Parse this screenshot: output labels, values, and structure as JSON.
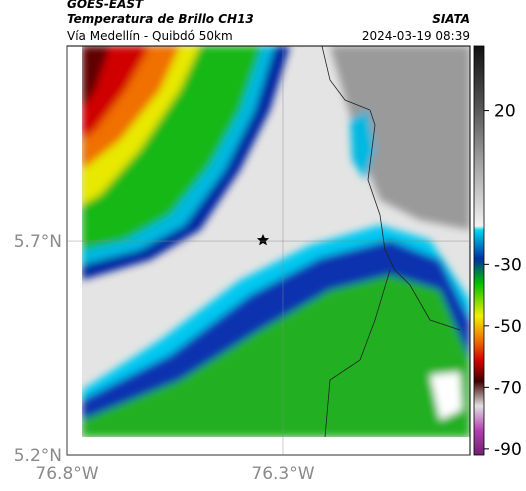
{
  "header": {
    "satellite": "GOES-EAST",
    "product": "Temperatura de Brillo CH13",
    "route": "Vía Medellín - Quibdó 50km",
    "source": "SIATA",
    "datetime": "2024-03-19 08:39"
  },
  "axes": {
    "xlim": [
      -76.8,
      -75.867
    ],
    "ylim": [
      5.2,
      6.156
    ],
    "xticks": [
      {
        "value": -76.8,
        "label": "76.8°W"
      },
      {
        "value": -76.3,
        "label": "76.3°W"
      }
    ],
    "yticks": [
      {
        "value": 5.2,
        "label": "5.2°N"
      },
      {
        "value": 5.7,
        "label": "5.7°N"
      }
    ]
  },
  "colorbar": {
    "lim": [
      -92,
      41
    ],
    "ticks": [
      20,
      -30,
      -50,
      -70,
      -90
    ]
  }
}
